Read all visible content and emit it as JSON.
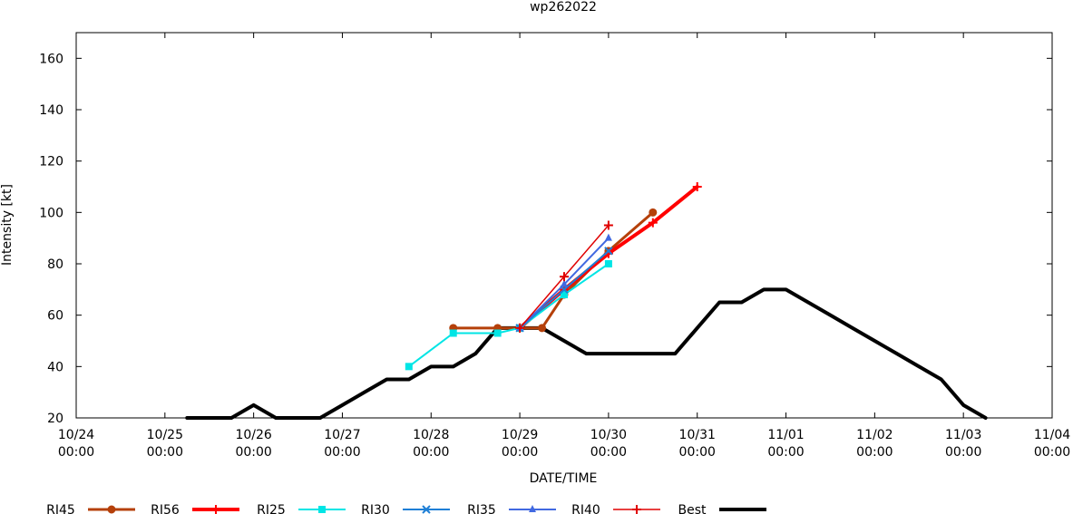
{
  "chart_data": {
    "type": "line",
    "title": "wp262022",
    "xlabel": "DATE/TIME",
    "ylabel": "Intensity [kt]",
    "ylim": [
      20,
      170
    ],
    "xlim": [
      "10/24 00:00",
      "11/04 00:00"
    ],
    "yticks": [
      20,
      40,
      60,
      80,
      100,
      120,
      140,
      160
    ],
    "xticks": [
      {
        "date": "10/24",
        "time": "00:00"
      },
      {
        "date": "10/25",
        "time": "00:00"
      },
      {
        "date": "10/26",
        "time": "00:00"
      },
      {
        "date": "10/27",
        "time": "00:00"
      },
      {
        "date": "10/28",
        "time": "00:00"
      },
      {
        "date": "10/29",
        "time": "00:00"
      },
      {
        "date": "10/30",
        "time": "00:00"
      },
      {
        "date": "10/31",
        "time": "00:00"
      },
      {
        "date": "11/01",
        "time": "00:00"
      },
      {
        "date": "11/02",
        "time": "00:00"
      },
      {
        "date": "11/03",
        "time": "00:00"
      },
      {
        "date": "11/04",
        "time": "00:00"
      }
    ],
    "grid": false,
    "legend_position": "bottom",
    "series": [
      {
        "name": "RI45",
        "color": "#b5400a",
        "marker": "circle",
        "line_width": 3,
        "points": [
          [
            "10/28 06:00",
            55
          ],
          [
            "10/28 18:00",
            55
          ],
          [
            "10/29 00:00",
            55
          ],
          [
            "10/29 06:00",
            55
          ],
          [
            "10/29 12:00",
            68
          ],
          [
            "10/30 00:00",
            85
          ],
          [
            "10/30 12:00",
            100
          ]
        ]
      },
      {
        "name": "RI56",
        "color": "#ff0000",
        "marker": "plus",
        "line_width": 4,
        "points": [
          [
            "10/29 00:00",
            55
          ],
          [
            "10/29 12:00",
            70
          ],
          [
            "10/30 00:00",
            84
          ],
          [
            "10/30 12:00",
            96
          ],
          [
            "10/31 00:00",
            110
          ]
        ]
      },
      {
        "name": "RI25",
        "color": "#00e5e5",
        "marker": "square",
        "line_width": 2,
        "points": [
          [
            "10/27 18:00",
            40
          ],
          [
            "10/28 06:00",
            53
          ],
          [
            "10/28 18:00",
            53
          ],
          [
            "10/29 00:00",
            55
          ],
          [
            "10/29 12:00",
            68
          ],
          [
            "10/30 00:00",
            80
          ]
        ]
      },
      {
        "name": "RI30",
        "color": "#1e7fd6",
        "marker": "x",
        "line_width": 2,
        "points": [
          [
            "10/29 00:00",
            55
          ],
          [
            "10/29 12:00",
            70
          ],
          [
            "10/30 00:00",
            85
          ]
        ]
      },
      {
        "name": "RI35",
        "color": "#4169e1",
        "marker": "triangle",
        "line_width": 2,
        "points": [
          [
            "10/29 00:00",
            55
          ],
          [
            "10/29 12:00",
            72
          ],
          [
            "10/30 00:00",
            90
          ]
        ]
      },
      {
        "name": "RI40",
        "color": "#e00000",
        "marker": "plus",
        "line_width": 1.5,
        "points": [
          [
            "10/29 00:00",
            55
          ],
          [
            "10/29 12:00",
            75
          ],
          [
            "10/30 00:00",
            95
          ]
        ]
      },
      {
        "name": "Best",
        "color": "#000000",
        "marker": "none",
        "line_width": 4,
        "points": [
          [
            "10/25 06:00",
            20
          ],
          [
            "10/25 18:00",
            20
          ],
          [
            "10/26 00:00",
            25
          ],
          [
            "10/26 06:00",
            20
          ],
          [
            "10/26 18:00",
            20
          ],
          [
            "10/27 00:00",
            25
          ],
          [
            "10/27 06:00",
            30
          ],
          [
            "10/27 12:00",
            35
          ],
          [
            "10/27 18:00",
            35
          ],
          [
            "10/28 00:00",
            40
          ],
          [
            "10/28 06:00",
            40
          ],
          [
            "10/28 12:00",
            45
          ],
          [
            "10/28 18:00",
            55
          ],
          [
            "10/29 00:00",
            55
          ],
          [
            "10/29 06:00",
            55
          ],
          [
            "10/29 12:00",
            50
          ],
          [
            "10/29 18:00",
            45
          ],
          [
            "10/30 00:00",
            45
          ],
          [
            "10/30 06:00",
            45
          ],
          [
            "10/30 12:00",
            45
          ],
          [
            "10/30 18:00",
            45
          ],
          [
            "10/31 00:00",
            55
          ],
          [
            "10/31 06:00",
            65
          ],
          [
            "10/31 12:00",
            65
          ],
          [
            "10/31 18:00",
            70
          ],
          [
            "11/01 00:00",
            70
          ],
          [
            "11/01 06:00",
            65
          ],
          [
            "11/01 12:00",
            60
          ],
          [
            "11/01 18:00",
            55
          ],
          [
            "11/02 00:00",
            50
          ],
          [
            "11/02 06:00",
            45
          ],
          [
            "11/02 12:00",
            40
          ],
          [
            "11/02 18:00",
            35
          ],
          [
            "11/03 00:00",
            25
          ],
          [
            "11/03 06:00",
            20
          ]
        ]
      }
    ]
  }
}
